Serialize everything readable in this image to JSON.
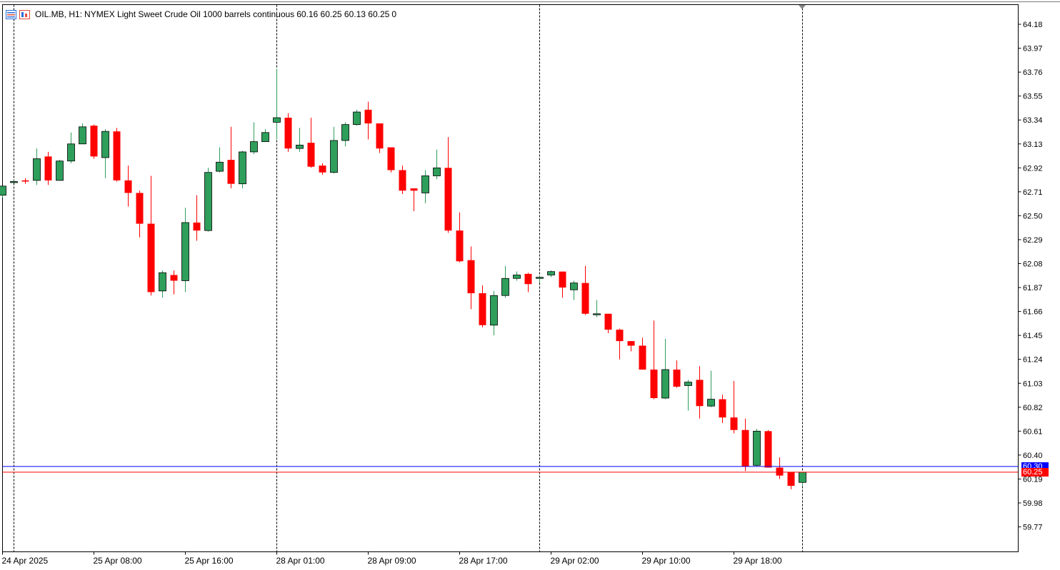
{
  "header": {
    "symbol": "OIL.MB, H1:",
    "description": "NYMEX Light Sweet Crude Oil 1000 barrels continuous",
    "ohlc": "60.16 60.25 60.13 60.25",
    "volume": "0"
  },
  "price_tags": {
    "ask": "60.30",
    "bid": "60.25"
  },
  "colors": {
    "bull": "#2e9e5b",
    "bear": "#ff0000",
    "bid_line": "#ff0000",
    "ask_line": "#0000ff",
    "grid": "#000000",
    "axis": "#000000"
  },
  "chart_data": {
    "type": "candlestick",
    "timeframe": "H1",
    "ylim": [
      59.57,
      64.28
    ],
    "y_ticks": [
      64.18,
      63.97,
      63.76,
      63.55,
      63.34,
      63.13,
      62.92,
      62.71,
      62.5,
      62.29,
      62.08,
      61.87,
      61.66,
      61.45,
      61.24,
      61.03,
      60.82,
      60.61,
      60.4,
      60.19,
      59.98,
      59.77
    ],
    "x_ticks": [
      {
        "label": "24 Apr 2025",
        "index": 0
      },
      {
        "label": "25 Apr 08:00",
        "index": 8
      },
      {
        "label": "25 Apr 16:00",
        "index": 16
      },
      {
        "label": "28 Apr 01:00",
        "index": 24
      },
      {
        "label": "28 Apr 09:00",
        "index": 32
      },
      {
        "label": "28 Apr 17:00",
        "index": 40
      },
      {
        "label": "29 Apr 02:00",
        "index": 48
      },
      {
        "label": "29 Apr 10:00",
        "index": 56
      },
      {
        "label": "29 Apr 18:00",
        "index": 64
      }
    ],
    "day_separators": [
      1,
      24,
      47,
      70
    ],
    "bid": 60.25,
    "ask": 60.3,
    "candles": [
      {
        "o": 62.68,
        "h": 62.76,
        "l": 62.66,
        "c": 62.76
      },
      {
        "o": 62.8,
        "h": 62.81,
        "l": 62.79,
        "c": 62.8
      },
      {
        "o": 62.81,
        "h": 62.83,
        "l": 62.78,
        "c": 62.8
      },
      {
        "o": 62.81,
        "h": 63.09,
        "l": 62.77,
        "c": 63.0
      },
      {
        "o": 63.02,
        "h": 63.06,
        "l": 62.77,
        "c": 62.81
      },
      {
        "o": 62.81,
        "h": 62.99,
        "l": 62.81,
        "c": 62.98
      },
      {
        "o": 62.98,
        "h": 63.23,
        "l": 62.96,
        "c": 63.13
      },
      {
        "o": 63.13,
        "h": 63.31,
        "l": 63.13,
        "c": 63.28
      },
      {
        "o": 63.29,
        "h": 63.3,
        "l": 63.0,
        "c": 63.02
      },
      {
        "o": 63.01,
        "h": 63.26,
        "l": 62.83,
        "c": 63.24
      },
      {
        "o": 63.24,
        "h": 63.27,
        "l": 62.8,
        "c": 62.81
      },
      {
        "o": 62.81,
        "h": 62.94,
        "l": 62.58,
        "c": 62.7
      },
      {
        "o": 62.7,
        "h": 62.72,
        "l": 62.31,
        "c": 62.43
      },
      {
        "o": 62.43,
        "h": 62.85,
        "l": 61.8,
        "c": 61.83
      },
      {
        "o": 61.84,
        "h": 62.02,
        "l": 61.78,
        "c": 62.0
      },
      {
        "o": 61.98,
        "h": 62.02,
        "l": 61.81,
        "c": 61.93
      },
      {
        "o": 61.93,
        "h": 62.57,
        "l": 61.83,
        "c": 62.44
      },
      {
        "o": 62.44,
        "h": 62.68,
        "l": 62.28,
        "c": 62.37
      },
      {
        "o": 62.37,
        "h": 62.92,
        "l": 62.36,
        "c": 62.88
      },
      {
        "o": 62.89,
        "h": 63.1,
        "l": 62.88,
        "c": 62.97
      },
      {
        "o": 62.99,
        "h": 63.28,
        "l": 62.74,
        "c": 62.78
      },
      {
        "o": 62.78,
        "h": 63.07,
        "l": 62.74,
        "c": 63.06
      },
      {
        "o": 63.06,
        "h": 63.32,
        "l": 63.04,
        "c": 63.15
      },
      {
        "o": 63.15,
        "h": 63.26,
        "l": 63.15,
        "c": 63.23
      },
      {
        "o": 63.32,
        "h": 63.79,
        "l": 63.17,
        "c": 63.36
      },
      {
        "o": 63.36,
        "h": 63.4,
        "l": 63.06,
        "c": 63.09
      },
      {
        "o": 63.09,
        "h": 63.27,
        "l": 63.06,
        "c": 63.12
      },
      {
        "o": 63.14,
        "h": 63.36,
        "l": 62.92,
        "c": 62.93
      },
      {
        "o": 62.94,
        "h": 62.96,
        "l": 62.86,
        "c": 62.88
      },
      {
        "o": 62.88,
        "h": 63.28,
        "l": 62.87,
        "c": 63.16
      },
      {
        "o": 63.16,
        "h": 63.32,
        "l": 63.11,
        "c": 63.3
      },
      {
        "o": 63.3,
        "h": 63.43,
        "l": 63.29,
        "c": 63.41
      },
      {
        "o": 63.43,
        "h": 63.5,
        "l": 63.17,
        "c": 63.31
      },
      {
        "o": 63.31,
        "h": 63.31,
        "l": 63.05,
        "c": 63.09
      },
      {
        "o": 63.1,
        "h": 63.1,
        "l": 62.88,
        "c": 62.9
      },
      {
        "o": 62.9,
        "h": 62.94,
        "l": 62.69,
        "c": 62.72
      },
      {
        "o": 62.74,
        "h": 62.74,
        "l": 62.54,
        "c": 62.72
      },
      {
        "o": 62.7,
        "h": 62.9,
        "l": 62.61,
        "c": 62.85
      },
      {
        "o": 62.85,
        "h": 63.08,
        "l": 62.82,
        "c": 62.92
      },
      {
        "o": 62.92,
        "h": 63.19,
        "l": 62.35,
        "c": 62.37
      },
      {
        "o": 62.37,
        "h": 62.53,
        "l": 62.09,
        "c": 62.1
      },
      {
        "o": 62.11,
        "h": 62.23,
        "l": 61.68,
        "c": 61.82
      },
      {
        "o": 61.82,
        "h": 61.89,
        "l": 61.52,
        "c": 61.54
      },
      {
        "o": 61.54,
        "h": 61.84,
        "l": 61.45,
        "c": 61.8
      },
      {
        "o": 61.8,
        "h": 62.06,
        "l": 61.78,
        "c": 61.95
      },
      {
        "o": 61.95,
        "h": 62.01,
        "l": 61.93,
        "c": 61.98
      },
      {
        "o": 61.99,
        "h": 62.0,
        "l": 61.83,
        "c": 61.9
      },
      {
        "o": 61.95,
        "h": 61.97,
        "l": 61.91,
        "c": 61.96
      },
      {
        "o": 61.98,
        "h": 62.02,
        "l": 61.96,
        "c": 62.01
      },
      {
        "o": 62.01,
        "h": 62.01,
        "l": 61.78,
        "c": 61.87
      },
      {
        "o": 61.85,
        "h": 61.93,
        "l": 61.76,
        "c": 61.91
      },
      {
        "o": 61.91,
        "h": 62.06,
        "l": 61.63,
        "c": 61.64
      },
      {
        "o": 61.64,
        "h": 61.76,
        "l": 61.61,
        "c": 61.64
      },
      {
        "o": 61.64,
        "h": 61.64,
        "l": 61.47,
        "c": 61.5
      },
      {
        "o": 61.5,
        "h": 61.51,
        "l": 61.24,
        "c": 61.4
      },
      {
        "o": 61.4,
        "h": 61.4,
        "l": 61.31,
        "c": 61.36
      },
      {
        "o": 61.36,
        "h": 61.43,
        "l": 61.15,
        "c": 61.15
      },
      {
        "o": 61.15,
        "h": 61.58,
        "l": 60.89,
        "c": 60.9
      },
      {
        "o": 60.9,
        "h": 61.42,
        "l": 60.89,
        "c": 61.15
      },
      {
        "o": 61.15,
        "h": 61.23,
        "l": 60.99,
        "c": 61.0
      },
      {
        "o": 61.01,
        "h": 61.06,
        "l": 60.79,
        "c": 61.04
      },
      {
        "o": 61.06,
        "h": 61.18,
        "l": 60.72,
        "c": 60.83
      },
      {
        "o": 60.83,
        "h": 61.14,
        "l": 60.82,
        "c": 60.89
      },
      {
        "o": 60.89,
        "h": 60.93,
        "l": 60.68,
        "c": 60.73
      },
      {
        "o": 60.73,
        "h": 61.05,
        "l": 60.59,
        "c": 60.62
      },
      {
        "o": 60.62,
        "h": 60.72,
        "l": 60.26,
        "c": 60.3
      },
      {
        "o": 60.31,
        "h": 60.63,
        "l": 60.3,
        "c": 60.61
      },
      {
        "o": 60.61,
        "h": 60.62,
        "l": 60.29,
        "c": 60.29
      },
      {
        "o": 60.29,
        "h": 60.38,
        "l": 60.19,
        "c": 60.22
      },
      {
        "o": 60.25,
        "h": 60.25,
        "l": 60.1,
        "c": 60.13
      },
      {
        "o": 60.16,
        "h": 60.25,
        "l": 60.13,
        "c": 60.25
      }
    ]
  }
}
